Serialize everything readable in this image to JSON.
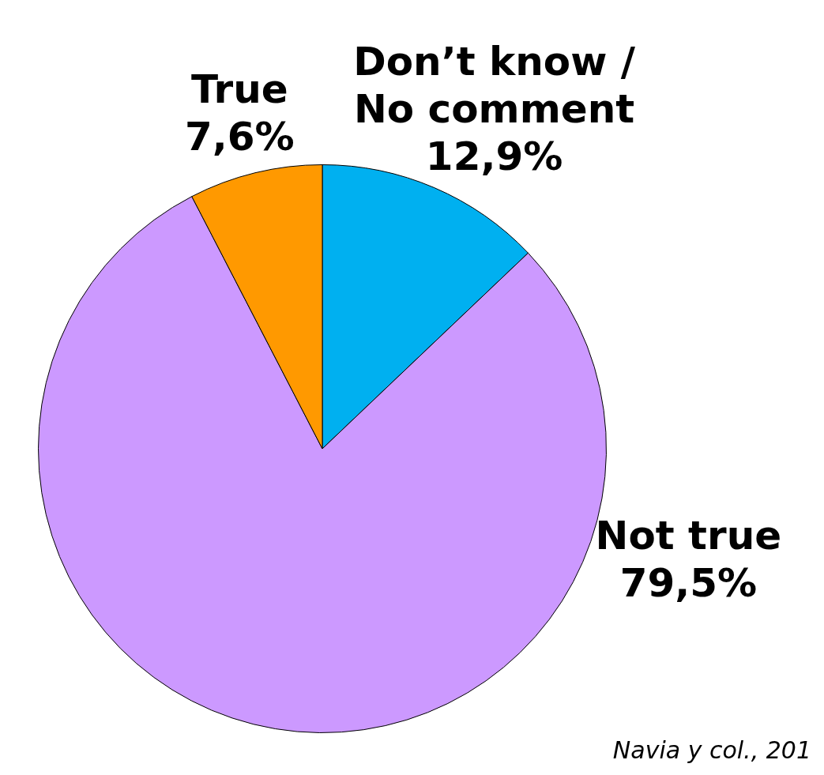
{
  "chart_data": {
    "type": "pie",
    "categories": [
      "Don’t know / No comment",
      "Not true",
      "True"
    ],
    "values": [
      12.9,
      79.5,
      7.6
    ],
    "colors": [
      "#00b0f0",
      "#cc99ff",
      "#ff9900"
    ],
    "value_labels": [
      "12,9%",
      "79,5%",
      "7,6%"
    ],
    "annotations": [
      "Navia y col., 201"
    ]
  }
}
